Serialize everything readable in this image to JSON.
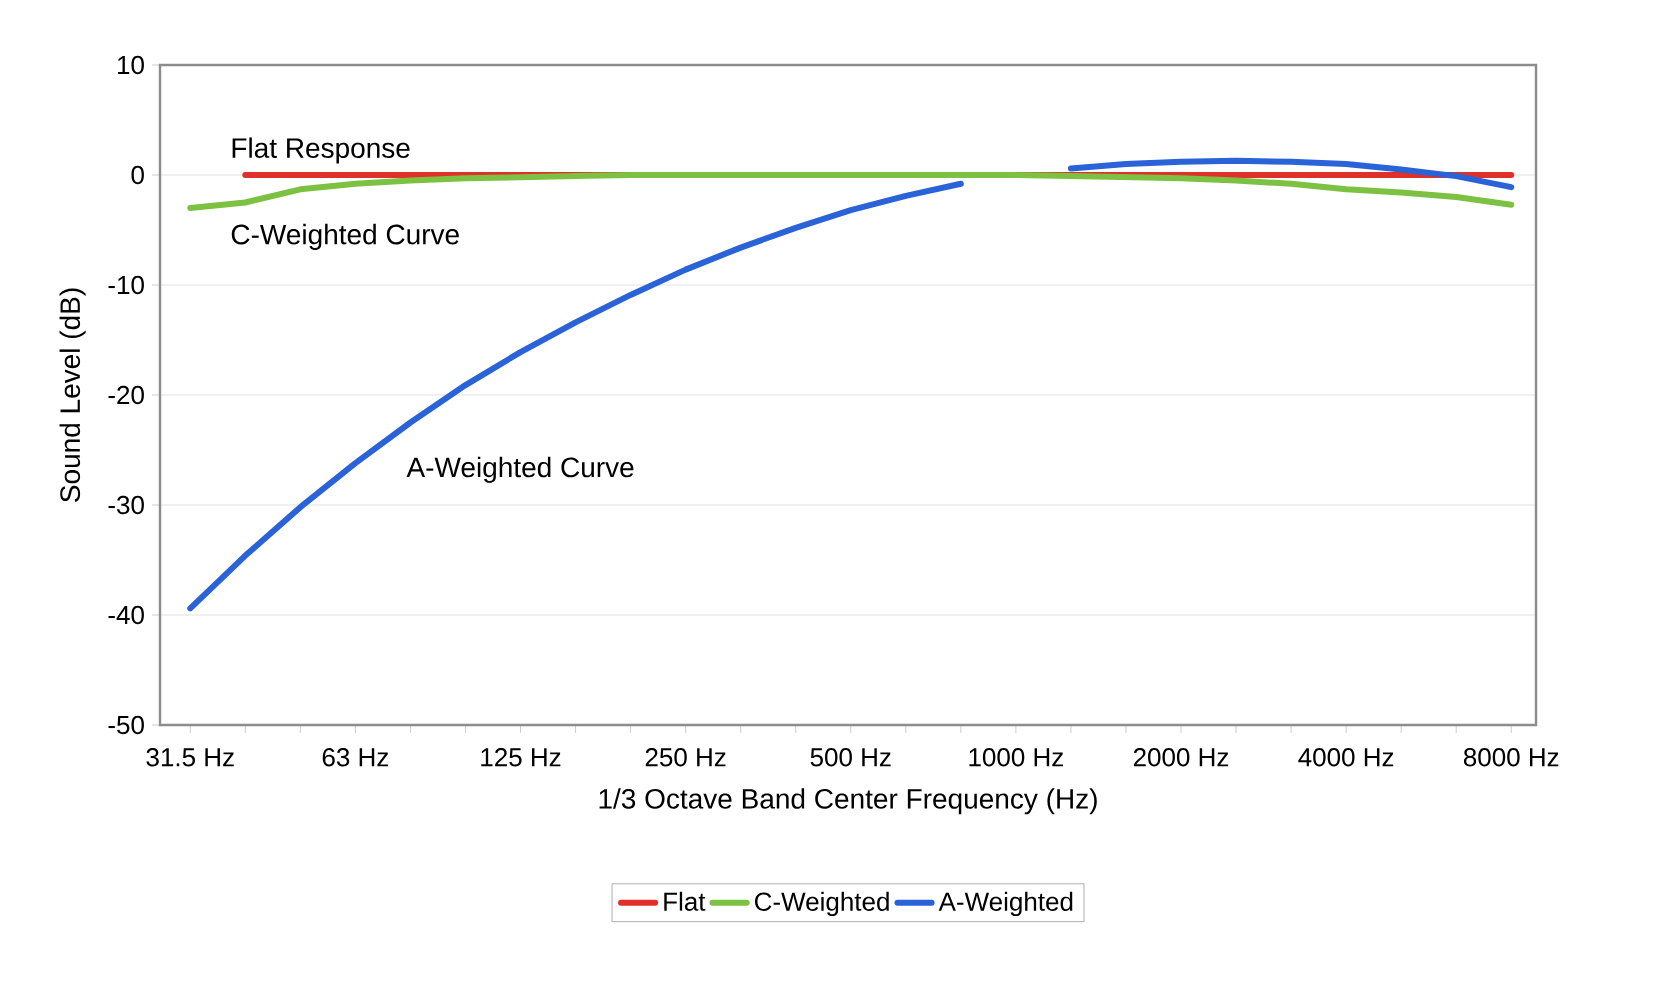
{
  "chart_data": {
    "type": "line",
    "xlabel": "1/3 Octave Band Center Frequency (Hz)",
    "ylabel": "Sound Level (dB)",
    "categories": [
      "31.5 Hz",
      null,
      null,
      "63 Hz",
      null,
      null,
      "125 Hz",
      null,
      null,
      "250 Hz",
      null,
      null,
      "500 Hz",
      null,
      null,
      "1000 Hz",
      null,
      null,
      "2000 Hz",
      null,
      null,
      "4000 Hz",
      null,
      null,
      "8000 Hz"
    ],
    "series": [
      {
        "name": "Flat",
        "color": "#e0302a",
        "values": [
          null,
          0,
          0,
          0,
          0,
          0,
          0,
          0,
          0,
          0,
          0,
          0,
          0,
          0,
          0,
          0,
          0,
          0,
          0,
          0,
          0,
          0,
          0,
          0,
          0
        ]
      },
      {
        "name": "C-Weighted",
        "color": "#7cc142",
        "values": [
          -3.0,
          -2.5,
          -1.3,
          -0.8,
          -0.5,
          -0.3,
          -0.2,
          -0.1,
          0,
          0,
          0,
          0,
          0,
          0,
          0,
          0,
          -0.1,
          -0.2,
          -0.3,
          -0.5,
          -0.8,
          -1.3,
          -1.6,
          -2.0,
          -2.7
        ]
      },
      {
        "name": "A-Weighted",
        "color": "#2a62d8",
        "values": [
          -39.4,
          -34.6,
          -30.2,
          -26.2,
          -22.5,
          -19.1,
          -16.1,
          -13.4,
          -10.9,
          -8.6,
          -6.6,
          -4.8,
          -3.2,
          -1.9,
          -0.8,
          null,
          0.6,
          1.0,
          1.2,
          1.3,
          1.2,
          1.0,
          0.5,
          -0.1,
          -1.1
        ]
      }
    ],
    "annotations": [
      "Flat Response",
      "C-Weighted Curve",
      "A-Weighted Curve"
    ],
    "ylim": [
      -50,
      10
    ],
    "yticks": [
      -50,
      -40,
      -30,
      -20,
      -10,
      0,
      10
    ],
    "grid": "y",
    "legend": "bottom",
    "line_style": "solid",
    "marker": "none"
  }
}
